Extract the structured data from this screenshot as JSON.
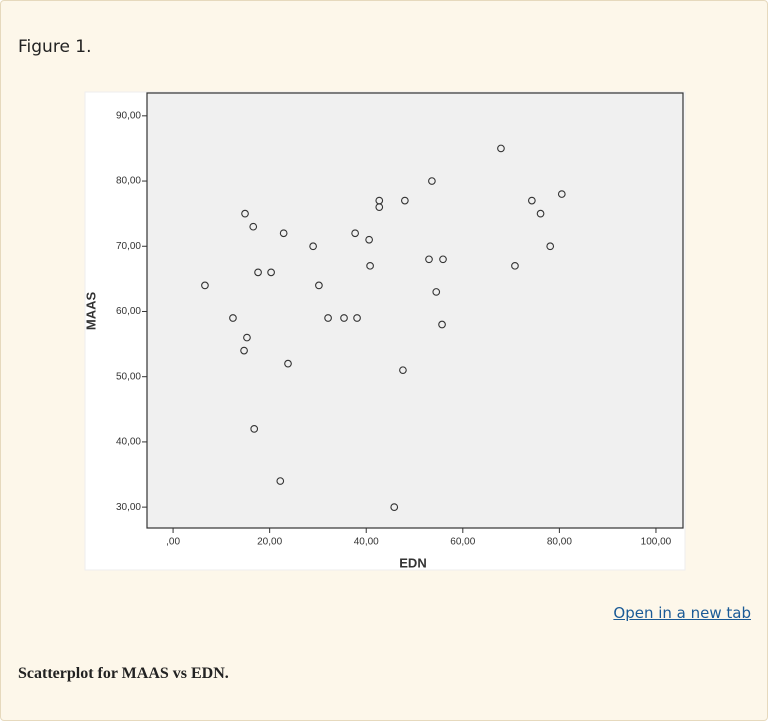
{
  "figure_label": "Figure 1.",
  "chart_data": {
    "type": "scatter",
    "x_label": "EDN",
    "y_label": "MAAS",
    "color": "#333333",
    "x": [
      6.6,
      14.9,
      16.6,
      12.4,
      15.3,
      14.7,
      17.6,
      20.3,
      22.9,
      16.8,
      23.8,
      22.2,
      29.0,
      30.2,
      32.1,
      35.4,
      38.1,
      37.7,
      40.6,
      40.8,
      42.7,
      42.7,
      48.0,
      47.6,
      45.8,
      53.6,
      53.0,
      55.9,
      54.5,
      55.7,
      67.9,
      70.8,
      74.3,
      76.1,
      78.1,
      80.5
    ],
    "values": [
      64,
      75,
      73,
      59,
      56,
      54,
      66,
      66,
      72,
      42,
      52,
      34,
      70,
      64,
      59,
      59,
      59,
      72,
      71,
      67,
      77,
      76,
      77,
      51,
      30,
      80,
      68,
      68,
      63,
      58,
      85,
      67,
      77,
      75,
      70,
      78
    ],
    "xlim": [
      -5.4,
      105.6
    ],
    "ylim": [
      26.8,
      93.5
    ],
    "xticks": [
      {
        "value": 0,
        "label": ",00"
      },
      {
        "value": 20,
        "label": "20,00"
      },
      {
        "value": 40,
        "label": "40,00"
      },
      {
        "value": 60,
        "label": "60,00"
      },
      {
        "value": 80,
        "label": "80,00"
      },
      {
        "value": 100,
        "label": "100,00"
      }
    ],
    "yticks": [
      {
        "value": 30,
        "label": "30,00"
      },
      {
        "value": 40,
        "label": "40,00"
      },
      {
        "value": 50,
        "label": "50,00"
      },
      {
        "value": 60,
        "label": "60,00"
      },
      {
        "value": 70,
        "label": "70,00"
      },
      {
        "value": 80,
        "label": "80,00"
      },
      {
        "value": 90,
        "label": "90,00"
      }
    ]
  },
  "link": "Open in a new tab",
  "caption": "Scatterplot for MAAS vs EDN."
}
